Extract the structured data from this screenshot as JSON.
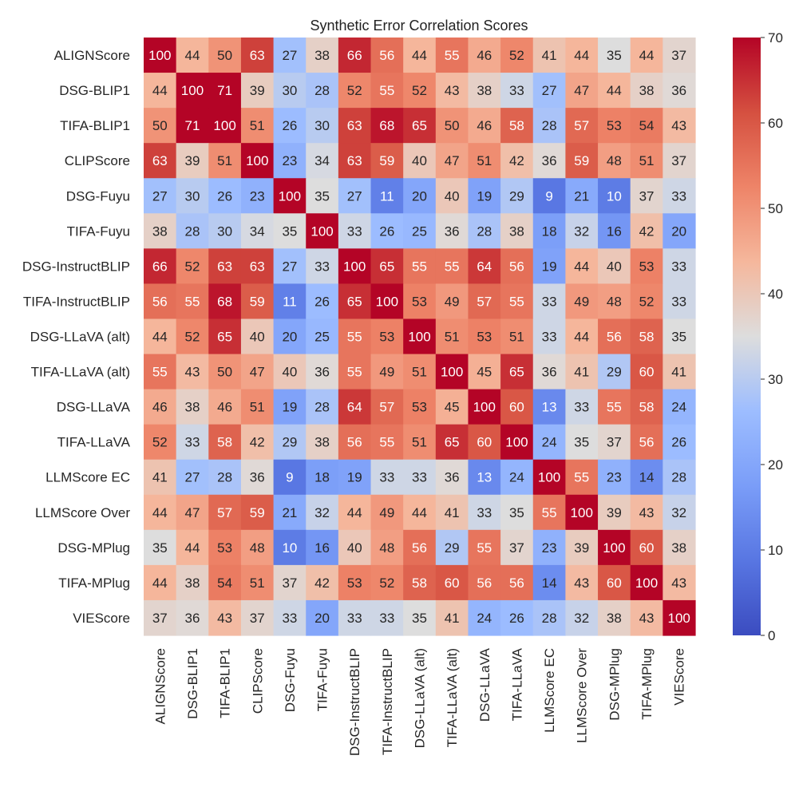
{
  "chart_data": {
    "type": "heatmap",
    "title": "Synthetic Error Correlation Scores",
    "xlabel": "",
    "ylabel": "",
    "labels": [
      "ALIGNScore",
      "DSG-BLIP1",
      "TIFA-BLIP1",
      "CLIPScore",
      "DSG-Fuyu",
      "TIFA-Fuyu",
      "DSG-InstructBLIP",
      "TIFA-InstructBLIP",
      "DSG-LLaVA (alt)",
      "TIFA-LLaVA (alt)",
      "DSG-LLaVA",
      "TIFA-LLaVA",
      "LLMScore EC",
      "LLMScore Over",
      "DSG-MPlug",
      "TIFA-MPlug",
      "VIEScore"
    ],
    "values": [
      [
        100,
        44,
        50,
        63,
        27,
        38,
        66,
        56,
        44,
        55,
        46,
        52,
        41,
        44,
        35,
        44,
        37
      ],
      [
        44,
        100,
        71,
        39,
        30,
        28,
        52,
        55,
        52,
        43,
        38,
        33,
        27,
        47,
        44,
        38,
        36
      ],
      [
        50,
        71,
        100,
        51,
        26,
        30,
        63,
        68,
        65,
        50,
        46,
        58,
        28,
        57,
        53,
        54,
        43
      ],
      [
        63,
        39,
        51,
        100,
        23,
        34,
        63,
        59,
        40,
        47,
        51,
        42,
        36,
        59,
        48,
        51,
        37
      ],
      [
        27,
        30,
        26,
        23,
        100,
        35,
        27,
        11,
        20,
        40,
        19,
        29,
        9,
        21,
        10,
        37,
        33
      ],
      [
        38,
        28,
        30,
        34,
        35,
        100,
        33,
        26,
        25,
        36,
        28,
        38,
        18,
        32,
        16,
        42,
        20
      ],
      [
        66,
        52,
        63,
        63,
        27,
        33,
        100,
        65,
        55,
        55,
        64,
        56,
        19,
        44,
        40,
        53,
        33
      ],
      [
        56,
        55,
        68,
        59,
        11,
        26,
        65,
        100,
        53,
        49,
        57,
        55,
        33,
        49,
        48,
        52,
        33
      ],
      [
        44,
        52,
        65,
        40,
        20,
        25,
        55,
        53,
        100,
        51,
        53,
        51,
        33,
        44,
        56,
        58,
        35
      ],
      [
        55,
        43,
        50,
        47,
        40,
        36,
        55,
        49,
        51,
        100,
        45,
        65,
        36,
        41,
        29,
        60,
        41
      ],
      [
        46,
        38,
        46,
        51,
        19,
        28,
        64,
        57,
        53,
        45,
        100,
        60,
        13,
        33,
        55,
        58,
        24
      ],
      [
        52,
        33,
        58,
        42,
        29,
        38,
        56,
        55,
        51,
        65,
        60,
        100,
        24,
        35,
        37,
        56,
        26
      ],
      [
        41,
        27,
        28,
        36,
        9,
        18,
        19,
        33,
        33,
        36,
        13,
        24,
        100,
        55,
        23,
        14,
        28
      ],
      [
        44,
        47,
        57,
        59,
        21,
        32,
        44,
        49,
        44,
        41,
        33,
        35,
        55,
        100,
        39,
        43,
        32
      ],
      [
        35,
        44,
        53,
        48,
        10,
        16,
        40,
        48,
        56,
        29,
        55,
        37,
        23,
        39,
        100,
        60,
        38
      ],
      [
        44,
        38,
        54,
        51,
        37,
        42,
        53,
        52,
        58,
        60,
        56,
        56,
        14,
        43,
        60,
        100,
        43
      ],
      [
        37,
        36,
        43,
        37,
        33,
        20,
        33,
        33,
        35,
        41,
        24,
        26,
        28,
        32,
        38,
        43,
        100
      ]
    ],
    "colorbar": {
      "min": 0,
      "max": 70,
      "ticks": [
        "0",
        "10",
        "20",
        "30",
        "40",
        "50",
        "60",
        "70"
      ],
      "colormap": "coolwarm",
      "color_low": "#3b4cc0",
      "color_mid": "#dddddd",
      "color_high": "#b40426"
    }
  }
}
